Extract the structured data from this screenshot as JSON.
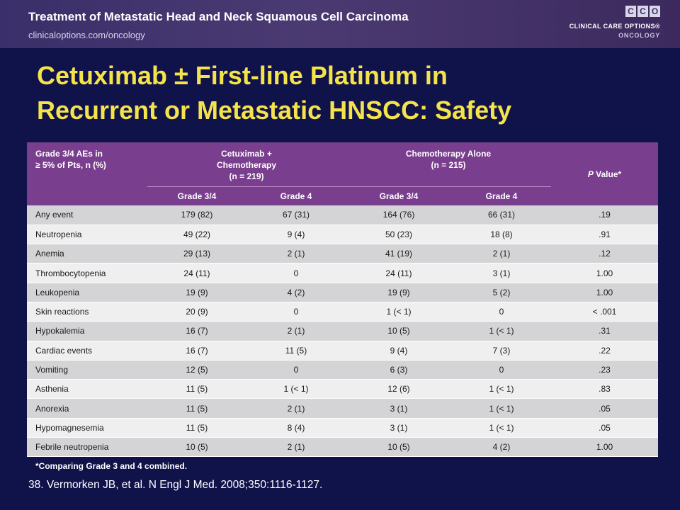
{
  "header": {
    "title": "Treatment of Metastatic Head and Neck Squamous Cell Carcinoma",
    "subtitle": "clinicaloptions.com/oncology"
  },
  "logo": {
    "letters": [
      "C",
      "C",
      "O"
    ],
    "line1": "CLINICAL CARE OPTIONS®",
    "line2": "ONCOLOGY"
  },
  "slide": {
    "title_line1": "Cetuximab ± First-line Platinum in",
    "title_line2": "Recurrent or Metastatic HNSCC: Safety"
  },
  "table": {
    "header": {
      "first_col_line1": "Grade 3/4 AEs in",
      "first_col_line2": "≥ 5% of Pts, n (%)",
      "group1_line1": "Cetuximab +",
      "group1_line2": "Chemotherapy",
      "group1_line3": "(n = 219)",
      "group2_line1": "Chemotherapy Alone",
      "group2_line2": "(n = 215)",
      "pvalue_italic": "P",
      "pvalue_rest": " Value*",
      "sub": [
        "Grade 3/4",
        "Grade 4",
        "Grade 3/4",
        "Grade 4"
      ]
    },
    "rows": [
      {
        "event": "Any event",
        "c34": "179 (82)",
        "c4": "67 (31)",
        "ch34": "164 (76)",
        "ch4": "66 (31)",
        "p": ".19"
      },
      {
        "event": "Neutropenia",
        "c34": "49 (22)",
        "c4": "9 (4)",
        "ch34": "50 (23)",
        "ch4": "18 (8)",
        "p": ".91"
      },
      {
        "event": "Anemia",
        "c34": "29 (13)",
        "c4": "2 (1)",
        "ch34": "41 (19)",
        "ch4": "2 (1)",
        "p": ".12"
      },
      {
        "event": "Thrombocytopenia",
        "c34": "24 (11)",
        "c4": "0",
        "ch34": "24 (11)",
        "ch4": "3 (1)",
        "p": "1.00"
      },
      {
        "event": "Leukopenia",
        "c34": "19 (9)",
        "c4": "4 (2)",
        "ch34": "19 (9)",
        "ch4": "5 (2)",
        "p": "1.00"
      },
      {
        "event": "Skin reactions",
        "c34": "20 (9)",
        "c4": "0",
        "ch34": "1 (< 1)",
        "ch4": "0",
        "p": "< .001"
      },
      {
        "event": "Hypokalemia",
        "c34": "16 (7)",
        "c4": "2 (1)",
        "ch34": "10 (5)",
        "ch4": "1 (< 1)",
        "p": ".31"
      },
      {
        "event": "Cardiac events",
        "c34": "16 (7)",
        "c4": "11 (5)",
        "ch34": "9 (4)",
        "ch4": "7 (3)",
        "p": ".22"
      },
      {
        "event": "Vomiting",
        "c34": "12 (5)",
        "c4": "0",
        "ch34": "6 (3)",
        "ch4": "0",
        "p": ".23"
      },
      {
        "event": "Asthenia",
        "c34": "11 (5)",
        "c4": "1 (< 1)",
        "ch34": "12 (6)",
        "ch4": "1 (< 1)",
        "p": ".83"
      },
      {
        "event": "Anorexia",
        "c34": "11 (5)",
        "c4": "2 (1)",
        "ch34": "3 (1)",
        "ch4": "1 (< 1)",
        "p": ".05"
      },
      {
        "event": "Hypomagnesemia",
        "c34": "11 (5)",
        "c4": "8 (4)",
        "ch34": "3 (1)",
        "ch4": "1 (< 1)",
        "p": ".05"
      },
      {
        "event": "Febrile neutropenia",
        "c34": "10 (5)",
        "c4": "2 (1)",
        "ch34": "10 (5)",
        "ch4": "4 (2)",
        "p": "1.00"
      }
    ]
  },
  "footnote": "*Comparing Grade 3 and 4 combined.",
  "reference": "38. Vermorken JB, et al. N Engl J Med. 2008;350:1116-1127.",
  "colors": {
    "background": "#10124a",
    "title": "#f4e34a",
    "table_header": "#7a3e8e"
  }
}
